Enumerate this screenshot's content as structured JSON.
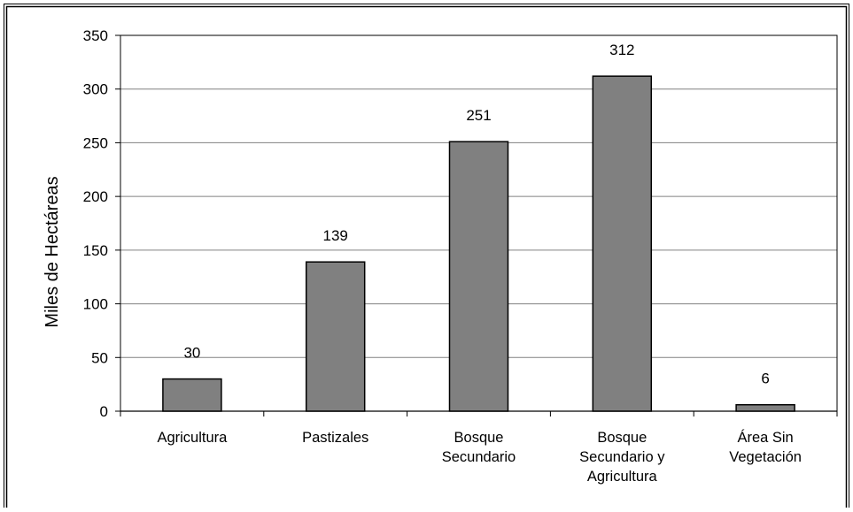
{
  "chart_data": {
    "type": "bar",
    "categories": [
      [
        "Agricultura"
      ],
      [
        "Pastizales"
      ],
      [
        "Bosque",
        "Secundario"
      ],
      [
        "Bosque",
        "Secundario y",
        "Agricultura"
      ],
      [
        "Área Sin",
        "Vegetación"
      ]
    ],
    "values": [
      30,
      139,
      251,
      312,
      6
    ],
    "data_labels": [
      "30",
      "139",
      "251",
      "312",
      "6"
    ],
    "ylabel": "Miles de Hectáreas",
    "ylim": [
      0,
      350
    ],
    "yticks": [
      0,
      50,
      100,
      150,
      200,
      250,
      300,
      350
    ],
    "grid": true,
    "legend": "none",
    "colors": {
      "bar_fill": "#808080",
      "bar_stroke": "#000000",
      "gridline": "#808080",
      "axis": "#000000",
      "outer_frame": "#000000"
    }
  }
}
